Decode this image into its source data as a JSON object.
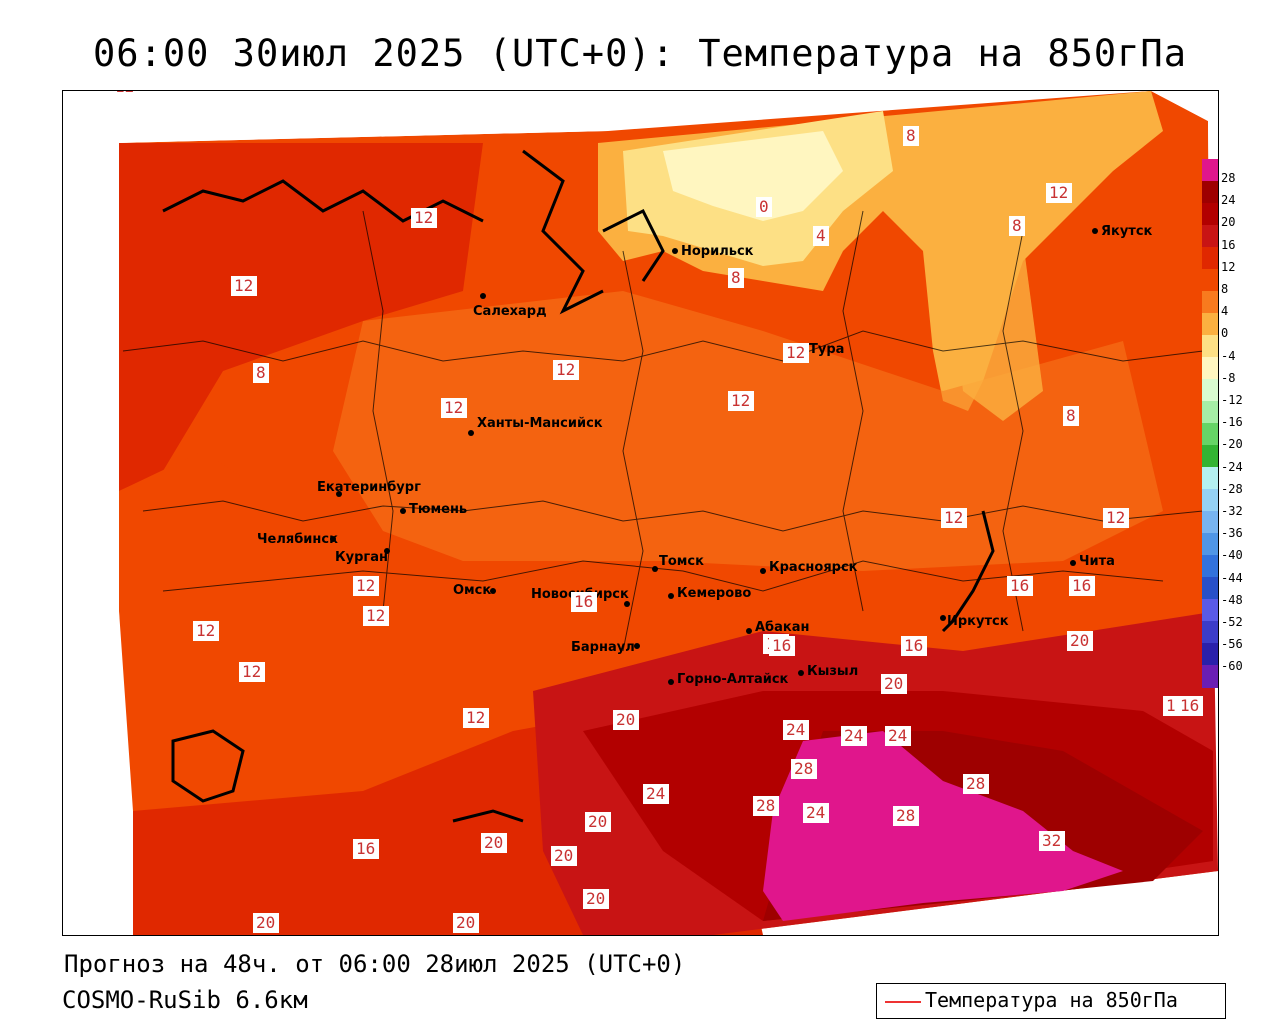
{
  "title": "06:00 30июл 2025 (UTC+0): Температура на 850гПа",
  "footer": {
    "forecast": "Прогноз на 48ч. от 06:00 28июл 2025 (UTC+0)",
    "model": "COSMO-RuSib 6.6км"
  },
  "legend": {
    "label": "Температура на 850гПа",
    "line_color": "#ee3333"
  },
  "colorbar": {
    "labels": [
      "28",
      "24",
      "20",
      "16",
      "12",
      "8",
      "4",
      "0",
      "-4",
      "-8",
      "-12",
      "-16",
      "-20",
      "-24",
      "-28",
      "-32",
      "-36",
      "-40",
      "-44",
      "-48",
      "-52",
      "-56",
      "-60"
    ],
    "colors": [
      "#e0168c",
      "#9e0000",
      "#b20000",
      "#c81414",
      "#e02800",
      "#f04800",
      "#f87a1e",
      "#fbb040",
      "#fde085",
      "#fff6c0",
      "#d9fbd0",
      "#a6eea6",
      "#66d466",
      "#33b433",
      "#b4f0f0",
      "#96d2f4",
      "#78b4f0",
      "#5096e6",
      "#3272dc",
      "#2850c8",
      "#5a5ae6",
      "#3c3cc8",
      "#2a20aa",
      "#6a1eb4"
    ]
  },
  "cities": [
    {
      "name": "Норильск"
    },
    {
      "name": "Якутск"
    },
    {
      "name": "Салехард"
    },
    {
      "name": "Тура"
    },
    {
      "name": "Ханты-Мансийск"
    },
    {
      "name": "Екатеринбург"
    },
    {
      "name": "Тюмень"
    },
    {
      "name": "Челябинск"
    },
    {
      "name": "Курган"
    },
    {
      "name": "Омск"
    },
    {
      "name": "Томск"
    },
    {
      "name": "Красноярск"
    },
    {
      "name": "Новосибирск"
    },
    {
      "name": "Кемерово"
    },
    {
      "name": "Абакан"
    },
    {
      "name": "Барнаул"
    },
    {
      "name": "Горно-Алтайск"
    },
    {
      "name": "Кызыл"
    },
    {
      "name": "Иркутск"
    },
    {
      "name": "Чита"
    }
  ],
  "contour_labels": [
    "12",
    "12",
    "8",
    "12",
    "12",
    "12",
    "12",
    "12",
    "12",
    "12",
    "12",
    "12",
    "16",
    "12",
    "16",
    "16",
    "20",
    "24",
    "20",
    "24",
    "24",
    "24",
    "28",
    "28",
    "28",
    "24",
    "28",
    "32",
    "24",
    "20",
    "20",
    "20",
    "20",
    "20",
    "20",
    "20",
    "16",
    "8",
    "0",
    "4",
    "8",
    "8",
    "12",
    "8",
    "12",
    "12",
    "16",
    "16",
    "12",
    "20",
    "16",
    "20",
    "16",
    "20"
  ]
}
